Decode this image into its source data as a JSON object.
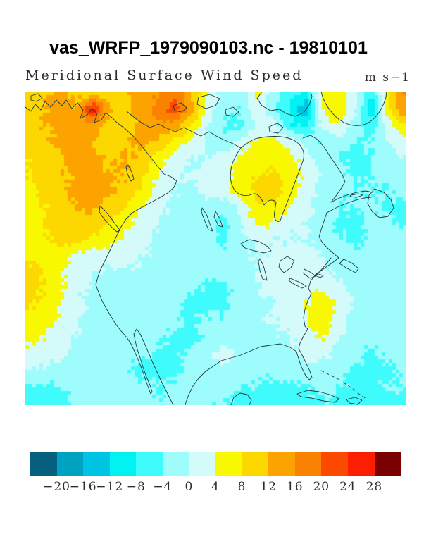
{
  "header": {
    "title": "vas_WRFP_1979090103.nc - 19810101",
    "subtitle": "Meridional Surface Wind Speed",
    "units": "m s−1"
  },
  "colorbar": {
    "tick_labels": [
      "−20",
      "−16",
      "−12",
      "−8",
      "−4",
      "0",
      "4",
      "8",
      "12",
      "16",
      "20",
      "24",
      "28"
    ]
  },
  "chart_data": {
    "type": "heatmap",
    "title": "Meridional Surface Wind Speed",
    "units": "m s-1",
    "region": "North America map (filled contours with coastlines)",
    "legend_position": "bottom",
    "levels": [
      -20,
      -16,
      -12,
      -8,
      -4,
      0,
      4,
      8,
      12,
      16,
      20,
      24,
      28
    ],
    "colors": [
      "#05607f",
      "#00a2c2",
      "#00c4e4",
      "#00f2f2",
      "#40fbfb",
      "#9ffcfc",
      "#d4fafa",
      "#f8f800",
      "#fcd700",
      "#fca300",
      "#fb8200",
      "#fb4a00",
      "#fb1e00",
      "#7b0000"
    ],
    "grid_cols": 24,
    "grid_rows": 20,
    "values": [
      [
        9,
        11,
        13,
        11,
        9,
        10,
        12,
        13,
        16,
        19,
        12,
        4,
        -2,
        -3,
        5,
        -3,
        -7,
        -9,
        6,
        7,
        1,
        -8,
        8,
        16
      ],
      [
        10,
        12,
        14,
        12,
        27,
        12,
        11,
        14,
        18,
        22,
        14,
        2,
        -3,
        -4,
        3,
        -3,
        -8,
        -16,
        4,
        8,
        0,
        -12,
        7,
        15
      ],
      [
        10,
        12,
        13,
        14,
        13,
        11,
        10,
        13,
        15,
        14,
        8,
        0,
        -4,
        -5,
        0,
        3,
        -8,
        -8,
        2,
        4,
        -2,
        -6,
        2,
        8
      ],
      [
        9,
        11,
        13,
        14,
        12,
        10,
        11,
        13,
        11,
        7,
        3,
        -1,
        -3,
        2,
        5,
        5,
        2,
        -2,
        -4,
        -2,
        -4,
        -4,
        0,
        3
      ],
      [
        8,
        10,
        12,
        14,
        13,
        11,
        13,
        11,
        6,
        2,
        0,
        0,
        2,
        5,
        6,
        6,
        5,
        2,
        -2,
        -4,
        -5,
        -4,
        -2,
        0
      ],
      [
        8,
        9,
        11,
        13,
        14,
        12,
        12,
        9,
        4,
        1,
        0,
        1,
        3,
        6,
        8,
        9,
        6,
        3,
        0,
        -3,
        -5,
        -4,
        -3,
        -2
      ],
      [
        7,
        9,
        11,
        13,
        14,
        13,
        11,
        7,
        2,
        0,
        -1,
        1,
        3,
        6,
        9,
        10,
        6,
        2,
        -1,
        -3,
        -4,
        -4,
        -4,
        -3
      ],
      [
        6,
        8,
        10,
        12,
        13,
        11,
        8,
        4,
        1,
        -1,
        -2,
        -2,
        -3,
        1,
        7,
        7,
        4,
        1,
        -2,
        -4,
        -4,
        -3,
        -5,
        -5
      ],
      [
        6,
        8,
        10,
        11,
        10,
        8,
        5,
        2,
        0,
        -2,
        -2,
        -3,
        -5,
        0,
        5,
        4,
        1,
        0,
        -2,
        -5,
        -5,
        -3,
        -3,
        -5
      ],
      [
        6,
        7,
        9,
        9,
        7,
        5,
        3,
        1,
        -1,
        -2,
        -3,
        -3,
        -5,
        -2,
        1,
        0,
        0,
        0,
        -1,
        -3,
        -5,
        -3,
        -2,
        -3
      ],
      [
        7,
        7,
        6,
        3,
        1,
        2,
        2,
        0,
        -1,
        -2,
        -2,
        -2,
        -2,
        -1,
        0,
        1,
        2,
        1,
        0,
        -2,
        -3,
        -2,
        -2,
        -2
      ],
      [
        10,
        8,
        5,
        2,
        0,
        -1,
        -1,
        -1,
        -2,
        -2,
        -2,
        -3,
        -3,
        -2,
        0,
        2,
        3,
        2,
        1,
        -1,
        -2,
        -2,
        -3,
        -3
      ],
      [
        10,
        8,
        5,
        1,
        -1,
        -2,
        -2,
        -1,
        -2,
        -3,
        -3,
        -5,
        -5,
        -2,
        0,
        1,
        2,
        3,
        4,
        1,
        -1,
        -2,
        -3,
        -3
      ],
      [
        8,
        7,
        4,
        1,
        -1,
        -2,
        -2,
        -2,
        -2,
        -3,
        -5,
        -5,
        -5,
        -2,
        -1,
        0,
        2,
        4,
        7,
        3,
        -1,
        -3,
        -3,
        -2
      ],
      [
        7,
        6,
        3,
        0,
        -1,
        -2,
        -1,
        -2,
        -3,
        -3,
        -5,
        -3,
        -3,
        -2,
        -1,
        0,
        1,
        4,
        7,
        2,
        -2,
        -3,
        -2,
        -2
      ],
      [
        5,
        4,
        2,
        0,
        -2,
        -3,
        -2,
        -2,
        -3,
        -5,
        -5,
        -3,
        -2,
        -2,
        -2,
        -1,
        0,
        2,
        4,
        0,
        -2,
        -3,
        -3,
        -3
      ],
      [
        3,
        2,
        1,
        -1,
        -2,
        -3,
        -3,
        -3,
        -5,
        -5,
        -3,
        -2,
        3,
        -2,
        -2,
        -2,
        -1,
        1,
        1,
        -1,
        -3,
        -5,
        -3,
        -2
      ],
      [
        0,
        -1,
        -2,
        -2,
        -3,
        -3,
        -3,
        -5,
        -5,
        -5,
        -3,
        -2,
        -2,
        -3,
        -3,
        -3,
        -2,
        -2,
        -2,
        -3,
        -5,
        -5,
        -5,
        -3
      ],
      [
        -5,
        -5,
        -4,
        -3,
        -3,
        -2,
        -2,
        -3,
        -4,
        -3,
        -2,
        -2,
        -3,
        -4,
        -4,
        -5,
        -5,
        -4,
        -3,
        -4,
        -5,
        -5,
        -4,
        -4
      ],
      [
        -6,
        -6,
        -5,
        -3,
        -2,
        -2,
        -3,
        -3,
        -4,
        -3,
        -2,
        -3,
        -4,
        -5,
        -5,
        -6,
        -6,
        -5,
        -4,
        -5,
        -6,
        -6,
        -5,
        -5
      ]
    ]
  }
}
